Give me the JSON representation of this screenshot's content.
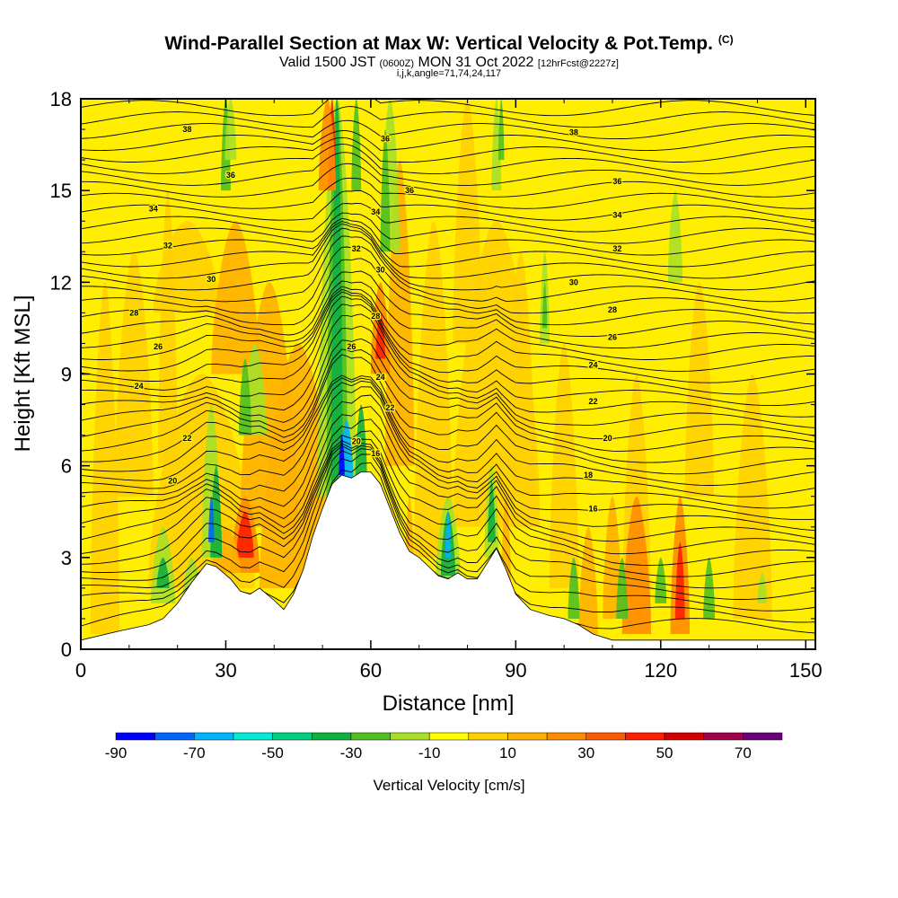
{
  "header": {
    "title": "Wind-Parallel Section at Max W: Vertical Velocity & Pot.Temp.",
    "copyright": "(C)",
    "valid_prefix": "Valid 1500 JST",
    "valid_utc": "(0600Z)",
    "valid_date": "MON 31 Oct 2022",
    "forecast_info": "[12hrFcst@2227z]",
    "section_info": "i,j,k,angle=71,74,24,117"
  },
  "chart_data": {
    "type": "heatmap",
    "xlabel": "Distance [nm]",
    "ylabel": "Height [Kft MSL]",
    "xlim": [
      0,
      152
    ],
    "ylim": [
      0,
      18
    ],
    "x_ticks": [
      "0",
      "30",
      "60",
      "90",
      "120",
      "150"
    ],
    "y_ticks": [
      "0",
      "3",
      "6",
      "9",
      "12",
      "15",
      "18"
    ],
    "x_tick_values": [
      0,
      30,
      60,
      90,
      120,
      150
    ],
    "y_tick_values": [
      0,
      3,
      6,
      9,
      12,
      15,
      18
    ],
    "background_color": "#ffee00",
    "colorbar": {
      "label": "Vertical Velocity [cm/s]",
      "ticks": [
        "-90",
        "-70",
        "-50",
        "-30",
        "-10",
        "10",
        "30",
        "50",
        "70"
      ],
      "tick_values": [
        -90,
        -70,
        -50,
        -30,
        -10,
        10,
        30,
        50,
        70
      ],
      "range": [
        -90,
        80
      ],
      "colors": [
        "#0000ff",
        "#0064ff",
        "#00b4ff",
        "#00ecd8",
        "#00d080",
        "#10b040",
        "#50c020",
        "#a8e028",
        "#ffff00",
        "#ffd000",
        "#ffb000",
        "#ff8c00",
        "#ff5a00",
        "#ff1e00",
        "#d40000",
        "#a0004a",
        "#6a007a"
      ]
    },
    "terrain_profile": {
      "x": [
        0,
        8,
        14,
        17,
        20,
        23,
        26,
        28,
        31,
        33,
        35,
        37,
        40,
        42,
        44,
        46,
        48,
        50,
        52,
        54,
        56,
        58,
        60,
        62,
        64,
        66,
        68,
        70,
        72,
        74,
        76,
        78,
        80,
        82,
        84,
        86,
        88,
        90,
        93,
        97,
        100,
        103,
        106,
        110,
        130,
        152
      ],
      "height": [
        0.3,
        0.6,
        0.8,
        1.0,
        1.5,
        2.2,
        2.8,
        2.7,
        2.3,
        1.9,
        1.8,
        2.0,
        1.6,
        1.3,
        1.8,
        2.6,
        3.7,
        4.6,
        5.4,
        5.7,
        5.6,
        5.8,
        5.8,
        5.4,
        4.6,
        3.8,
        3.2,
        3.0,
        2.7,
        2.4,
        2.3,
        2.5,
        2.3,
        2.3,
        2.8,
        3.3,
        2.6,
        1.8,
        1.3,
        1.1,
        1.0,
        0.8,
        0.5,
        0.3,
        0.3,
        0.3
      ]
    },
    "theta_contour_labels": [
      {
        "text": "38",
        "x": 22,
        "y": 17.0
      },
      {
        "text": "36",
        "x": 31,
        "y": 15.5
      },
      {
        "text": "34",
        "x": 15,
        "y": 14.4
      },
      {
        "text": "32",
        "x": 18,
        "y": 13.2
      },
      {
        "text": "30",
        "x": 27,
        "y": 12.1
      },
      {
        "text": "28",
        "x": 11,
        "y": 11.0
      },
      {
        "text": "26",
        "x": 16,
        "y": 9.9
      },
      {
        "text": "24",
        "x": 12,
        "y": 8.6
      },
      {
        "text": "22",
        "x": 22,
        "y": 6.9
      },
      {
        "text": "20",
        "x": 19,
        "y": 5.5
      },
      {
        "text": "36",
        "x": 63,
        "y": 16.7
      },
      {
        "text": "36",
        "x": 68,
        "y": 15.0
      },
      {
        "text": "34",
        "x": 61,
        "y": 14.3
      },
      {
        "text": "32",
        "x": 57,
        "y": 13.1
      },
      {
        "text": "30",
        "x": 62,
        "y": 12.4
      },
      {
        "text": "28",
        "x": 61,
        "y": 10.9
      },
      {
        "text": "26",
        "x": 56,
        "y": 9.9
      },
      {
        "text": "24",
        "x": 62,
        "y": 8.9
      },
      {
        "text": "22",
        "x": 64,
        "y": 7.9
      },
      {
        "text": "20",
        "x": 57,
        "y": 6.8
      },
      {
        "text": "16",
        "x": 61,
        "y": 6.4
      },
      {
        "text": "38",
        "x": 102,
        "y": 16.9
      },
      {
        "text": "36",
        "x": 111,
        "y": 15.3
      },
      {
        "text": "34",
        "x": 111,
        "y": 14.2
      },
      {
        "text": "32",
        "x": 111,
        "y": 13.1
      },
      {
        "text": "30",
        "x": 102,
        "y": 12.0
      },
      {
        "text": "28",
        "x": 110,
        "y": 11.1
      },
      {
        "text": "26",
        "x": 110,
        "y": 10.2
      },
      {
        "text": "24",
        "x": 106,
        "y": 9.3
      },
      {
        "text": "22",
        "x": 106,
        "y": 8.1
      },
      {
        "text": "20",
        "x": 109,
        "y": 6.9
      },
      {
        "text": "18",
        "x": 105,
        "y": 5.7
      },
      {
        "text": "16",
        "x": 106,
        "y": 4.6
      }
    ]
  }
}
